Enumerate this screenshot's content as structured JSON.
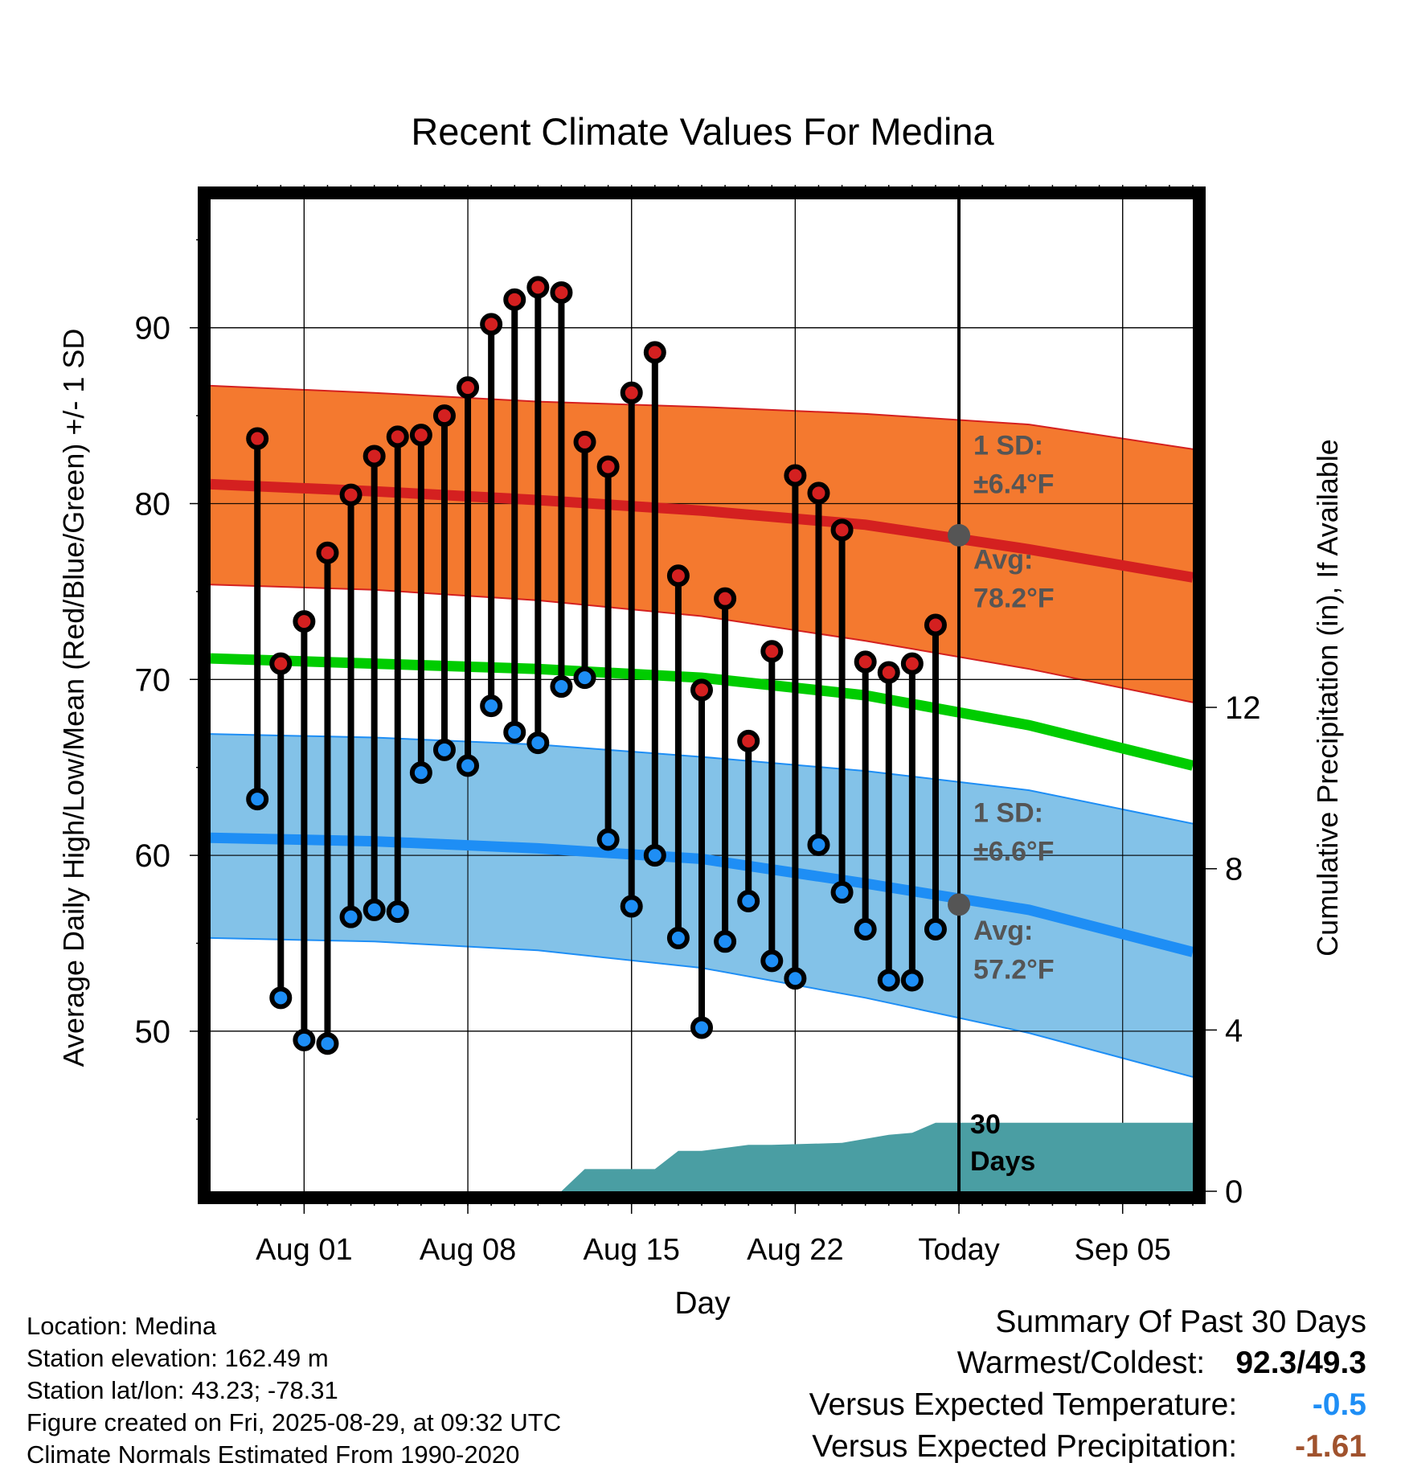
{
  "chart_data": {
    "type": "line",
    "title": "Recent Climate Values For Medina",
    "xlabel": "Day",
    "ylabel": "Average Daily High/Low/Mean (Red/Blue/Green) +/- 1 SD",
    "y2label": "Cumulative Precipitation (in), If Available",
    "ylim": [
      40.9,
      97.3
    ],
    "y2lim": [
      0,
      24.6
    ],
    "xlim": [
      "2025-07-28",
      "2025-09-08"
    ],
    "yticks": [
      50,
      60,
      70,
      80,
      90
    ],
    "y2ticks": [
      0,
      4,
      8,
      12
    ],
    "xticks": [
      {
        "date": "2025-08-01",
        "label": "Aug 01"
      },
      {
        "date": "2025-08-08",
        "label": "Aug 08"
      },
      {
        "date": "2025-08-15",
        "label": "Aug 15"
      },
      {
        "date": "2025-08-22",
        "label": "Aug 22"
      },
      {
        "date": "2025-08-29",
        "label": "Today"
      },
      {
        "date": "2025-09-05",
        "label": "Sep 05"
      }
    ],
    "grid": true,
    "today": "2025-08-29",
    "observed": {
      "dates": [
        "2025-07-30",
        "2025-07-31",
        "2025-08-01",
        "2025-08-02",
        "2025-08-03",
        "2025-08-04",
        "2025-08-05",
        "2025-08-06",
        "2025-08-07",
        "2025-08-08",
        "2025-08-09",
        "2025-08-10",
        "2025-08-11",
        "2025-08-12",
        "2025-08-13",
        "2025-08-14",
        "2025-08-15",
        "2025-08-16",
        "2025-08-17",
        "2025-08-18",
        "2025-08-19",
        "2025-08-20",
        "2025-08-21",
        "2025-08-22",
        "2025-08-23",
        "2025-08-24",
        "2025-08-25",
        "2025-08-26",
        "2025-08-27",
        "2025-08-28"
      ],
      "high": [
        83.7,
        70.9,
        73.3,
        77.2,
        80.5,
        82.7,
        83.8,
        83.9,
        85.0,
        86.6,
        90.2,
        91.6,
        92.3,
        92.0,
        83.5,
        82.1,
        86.3,
        88.6,
        75.9,
        69.4,
        74.6,
        66.5,
        71.6,
        81.6,
        80.6,
        78.5,
        71.0,
        70.4,
        70.9,
        73.1
      ],
      "low": [
        63.2,
        51.9,
        49.5,
        49.3,
        56.5,
        56.9,
        56.8,
        64.7,
        66.0,
        65.1,
        68.5,
        67.0,
        66.4,
        69.6,
        70.1,
        60.9,
        57.1,
        60.0,
        55.3,
        50.2,
        55.1,
        57.4,
        54.0,
        53.0,
        60.6,
        57.9,
        55.8,
        52.9,
        52.9,
        55.8
      ]
    },
    "normals": {
      "dates": [
        "2025-07-28",
        "2025-08-04",
        "2025-08-11",
        "2025-08-18",
        "2025-08-25",
        "2025-09-01",
        "2025-09-08"
      ],
      "high_avg": [
        81.1,
        80.7,
        80.2,
        79.6,
        78.8,
        77.4,
        75.8
      ],
      "high_sd_upper": [
        86.7,
        86.3,
        85.8,
        85.5,
        85.1,
        84.5,
        83.1
      ],
      "high_sd_lower": [
        75.4,
        75.1,
        74.5,
        73.6,
        72.2,
        70.6,
        68.7
      ],
      "mean_avg": [
        71.2,
        70.9,
        70.6,
        70.1,
        69.1,
        67.4,
        65.1
      ],
      "low_avg": [
        61.0,
        60.8,
        60.4,
        59.8,
        58.4,
        56.9,
        54.5
      ],
      "low_sd_upper": [
        66.9,
        66.7,
        66.3,
        65.6,
        64.8,
        63.7,
        61.8
      ],
      "low_sd_lower": [
        55.3,
        55.1,
        54.6,
        53.6,
        51.9,
        49.9,
        47.4
      ]
    },
    "precip": {
      "dates": [
        "2025-08-12",
        "2025-08-13",
        "2025-08-16",
        "2025-08-17",
        "2025-08-18",
        "2025-08-20",
        "2025-08-21",
        "2025-08-24",
        "2025-08-25",
        "2025-08-26",
        "2025-08-27",
        "2025-08-28",
        "2025-09-08"
      ],
      "cumulative": [
        0.0,
        0.55,
        0.55,
        1.0,
        1.0,
        1.15,
        1.15,
        1.2,
        1.3,
        1.4,
        1.45,
        1.7,
        1.7
      ]
    },
    "annotations": {
      "high_sd": "1 SD:",
      "high_sd_value": "±6.4°F",
      "high_avg_label": "Avg:",
      "high_avg_value": "78.2°F",
      "low_sd": "1 SD:",
      "low_sd_value": "±6.6°F",
      "low_avg_label": "Avg:",
      "low_avg_value": "57.2°F",
      "days_1": "30",
      "days_2": "Days"
    },
    "colors": {
      "high_band": "#f4792f",
      "high_line": "#d42020",
      "low_band": "#83c2e8",
      "low_line": "#1e8ef5",
      "mean_line": "#00cc00",
      "precip": "#4a9ea3",
      "high_dot": "#d42020",
      "low_dot": "#1e8ef5",
      "annotation": "#555555"
    }
  },
  "info": {
    "location": "Location: Medina",
    "elevation": "Station elevation: 162.49 m",
    "latlon": "Station lat/lon: 43.23; -78.31",
    "created": "Figure created on Fri, 2025-08-29, at 09:32 UTC",
    "normals": "Climate Normals Estimated From 1990-2020"
  },
  "summary": {
    "title": "Summary Of Past 30 Days",
    "warm_label": "Warmest/Coldest:",
    "warm_value": "92.3/49.3",
    "temp_label": "Versus Expected Temperature:",
    "temp_value": "-0.5",
    "temp_color": "#1e8ef5",
    "precip_label": "Versus Expected Precipitation:",
    "precip_value": "-1.61",
    "precip_color": "#a0522d"
  }
}
